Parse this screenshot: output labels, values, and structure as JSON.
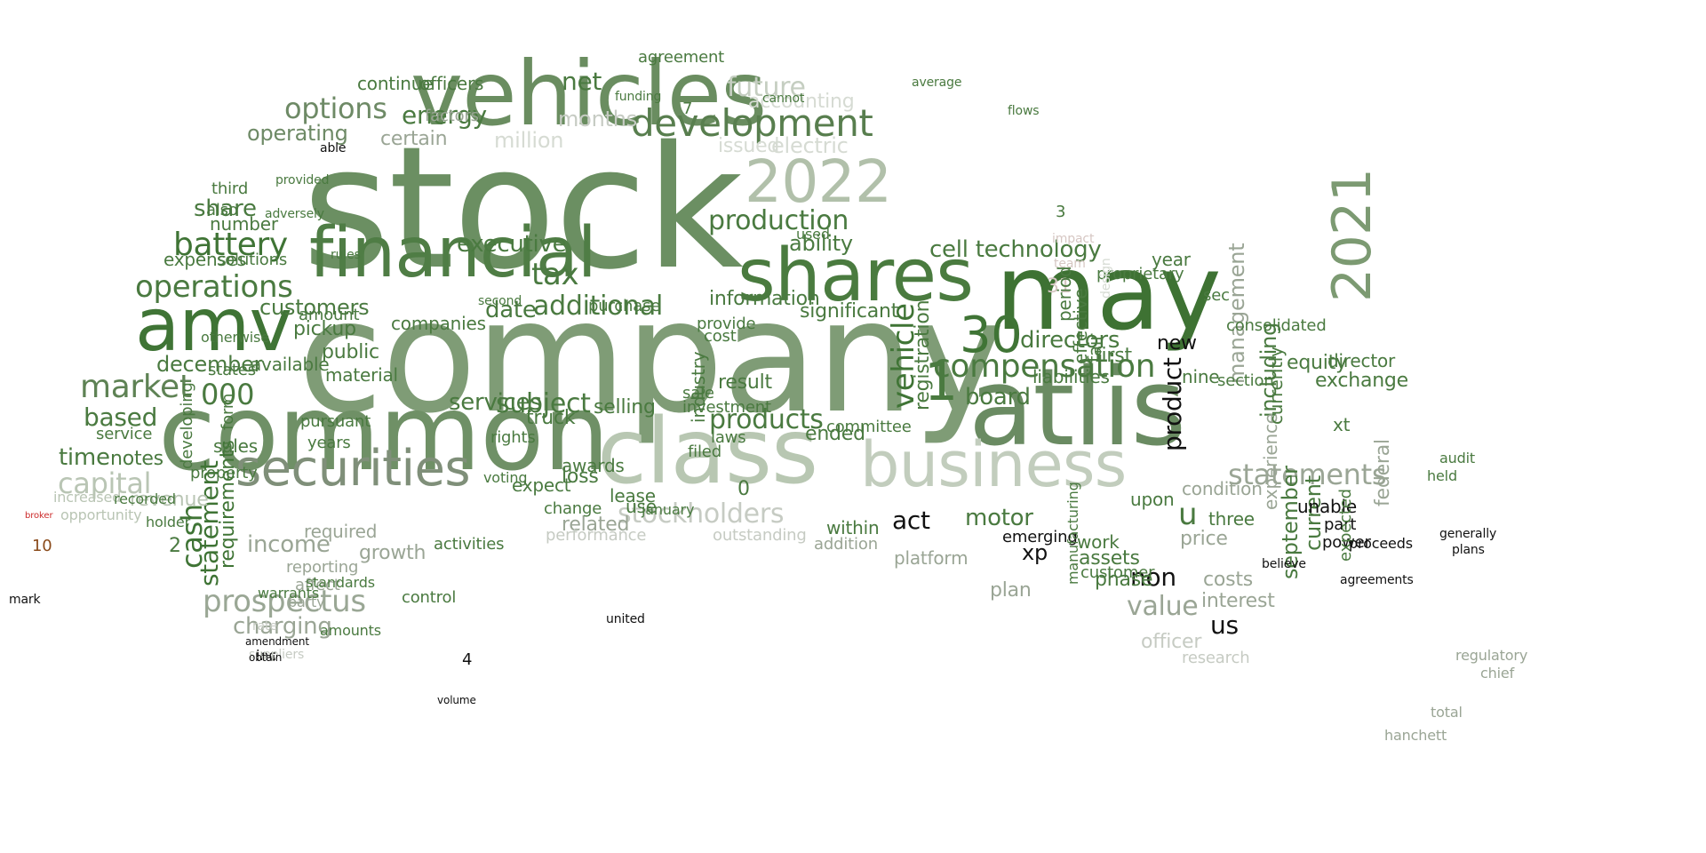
{
  "words": [
    {
      "text": "stock",
      "color": "#6b8f62",
      "s": 1
    },
    {
      "text": "company",
      "color": "#7f9c76",
      "s": 1
    },
    {
      "text": "common",
      "color": "#6f9066",
      "s": 1
    },
    {
      "text": "atlis",
      "color": "#6a8b62",
      "s": 1
    },
    {
      "text": "may",
      "color": "#3e7233",
      "s": 1
    },
    {
      "text": "vehicles",
      "color": "#6a8d60",
      "s": 1
    },
    {
      "text": "class",
      "color": "#b8c7b2",
      "s": 1
    },
    {
      "text": "business",
      "color": "#c2cdbd",
      "s": 1
    },
    {
      "text": "financial",
      "color": "#4f7d45",
      "s": 1
    },
    {
      "text": "shares",
      "color": "#4a7b3f",
      "s": 1
    },
    {
      "text": "amv",
      "color": "#3f7435",
      "s": 1
    },
    {
      "text": "securities",
      "color": "#7f8f79",
      "s": 1
    },
    {
      "text": "2022",
      "color": "#b1c0aa",
      "s": 1
    },
    {
      "text": "2021",
      "color": "#7c9a72",
      "s": 1
    },
    {
      "text": "30",
      "color": "#3f7435",
      "s": 1
    },
    {
      "text": "development",
      "color": "#587e4e",
      "s": 1
    },
    {
      "text": "battery",
      "color": "#3f7435",
      "s": 1
    },
    {
      "text": "market",
      "color": "#5e8254",
      "s": 1
    },
    {
      "text": "operations",
      "color": "#4a7a40",
      "s": 1
    },
    {
      "text": "compensation",
      "color": "#4a7a40",
      "s": 1
    },
    {
      "text": "vehicle",
      "color": "#3f7435",
      "s": 1
    },
    {
      "text": "production",
      "color": "#4a7a40",
      "s": 1
    },
    {
      "text": "energy",
      "color": "#4a7a40",
      "s": 1
    },
    {
      "text": "options",
      "color": "#6e8a66",
      "s": 1
    },
    {
      "text": "future",
      "color": "#c5ceC1",
      "s": 1
    },
    {
      "text": "net",
      "color": "#4a7a40",
      "s": 1
    },
    {
      "text": "prospectus",
      "color": "#9aa795",
      "s": 1
    },
    {
      "text": "stockholders",
      "color": "#c6cbc3",
      "s": 1
    },
    {
      "text": "statements",
      "color": "#9aa595",
      "s": 1
    },
    {
      "text": "value",
      "color": "#9aa595",
      "s": 1
    },
    {
      "text": "capital",
      "color": "#b9c5b4",
      "s": 1
    },
    {
      "text": "000",
      "color": "#4a7a40",
      "s": 1
    },
    {
      "text": "additional",
      "color": "#4a7a40",
      "s": 1
    },
    {
      "text": "products",
      "color": "#4a7a40",
      "s": 1
    },
    {
      "text": "cell technology",
      "color": "#4a7a40",
      "s": 1
    },
    {
      "text": "directors",
      "color": "#4a7a40",
      "s": 1
    },
    {
      "text": "board",
      "color": "#4a7a40",
      "s": 1
    },
    {
      "text": "services",
      "color": "#4a7a40",
      "s": 1
    },
    {
      "text": "executive",
      "color": "#4a7a40",
      "s": 1
    },
    {
      "text": "tax",
      "color": "#4a7a40",
      "s": 1
    },
    {
      "text": "subject",
      "color": "#4a7a40",
      "s": 1
    },
    {
      "text": "date",
      "color": "#4a7a40",
      "s": 1
    },
    {
      "text": "customers",
      "color": "#4a7a40",
      "s": 1
    },
    {
      "text": "cash",
      "color": "#3f7435",
      "s": 1
    },
    {
      "text": "statement",
      "color": "#3f7435",
      "s": 1
    },
    {
      "text": "requirements",
      "color": "#3f7435",
      "s": 1
    },
    {
      "text": "december",
      "color": "#4a7a40",
      "s": 1
    },
    {
      "text": "based",
      "color": "#4a7a40",
      "s": 1
    },
    {
      "text": "time",
      "color": "#4a7a40",
      "s": 1
    },
    {
      "text": "notes",
      "color": "#4a7a40",
      "s": 1
    },
    {
      "text": "income",
      "color": "#9aa595",
      "s": 1
    },
    {
      "text": "charging",
      "color": "#9aa595",
      "s": 1
    },
    {
      "text": "growth",
      "color": "#9aa595",
      "s": 1
    },
    {
      "text": "motor",
      "color": "#4a7a40",
      "s": 1
    },
    {
      "text": "act",
      "color": "#111111",
      "s": 1
    },
    {
      "text": "non",
      "color": "#111111",
      "s": 1
    },
    {
      "text": "us",
      "color": "#111111",
      "s": 1
    },
    {
      "text": "u",
      "color": "#4a7a40",
      "s": 1
    },
    {
      "text": "1",
      "color": "#4a7a40",
      "s": 1
    },
    {
      "text": "share",
      "color": "#4a7a40",
      "s": 1
    },
    {
      "text": "operating",
      "color": "#6e8a66",
      "s": 1
    },
    {
      "text": "certain",
      "color": "#9aa595",
      "s": 1
    },
    {
      "text": "months",
      "color": "#c6cbc3",
      "s": 1
    },
    {
      "text": "million",
      "color": "#d6dbd3",
      "s": 1
    },
    {
      "text": "officers",
      "color": "#4a7a40",
      "s": 1
    },
    {
      "text": "continue",
      "color": "#4a7a40",
      "s": 1
    },
    {
      "text": "agreement",
      "color": "#4a7a40",
      "s": 1
    },
    {
      "text": "electric",
      "color": "#d6dbd3",
      "s": 1
    },
    {
      "text": "accounting",
      "color": "#d6dbd3",
      "s": 1
    },
    {
      "text": "issued",
      "color": "#d6dbd3",
      "s": 1
    },
    {
      "text": "ability",
      "color": "#4a7a40",
      "s": 1
    },
    {
      "text": "information",
      "color": "#4a7a40",
      "s": 1
    },
    {
      "text": "significant",
      "color": "#4a7a40",
      "s": 1
    },
    {
      "text": "registration",
      "color": "#4a7a40",
      "s": 1
    },
    {
      "text": "management",
      "color": "#9aa595",
      "s": 1
    },
    {
      "text": "including",
      "color": "#4a7a40",
      "s": 1
    },
    {
      "text": "current",
      "color": "#4a7a40",
      "s": 1
    },
    {
      "text": "september",
      "color": "#4a7a40",
      "s": 1
    },
    {
      "text": "product",
      "color": "#111111",
      "s": 1
    },
    {
      "text": "liabilities",
      "color": "#4a7a40",
      "s": 1
    },
    {
      "text": "selling",
      "color": "#4a7a40",
      "s": 1
    },
    {
      "text": "material",
      "color": "#4a7a40",
      "s": 1
    },
    {
      "text": "public",
      "color": "#4a7a40",
      "s": 1
    },
    {
      "text": "pickup",
      "color": "#4a7a40",
      "s": 1
    },
    {
      "text": "amount",
      "color": "#4a7a40",
      "s": 1
    },
    {
      "text": "available",
      "color": "#4a7a40",
      "s": 1
    },
    {
      "text": "sales",
      "color": "#4a7a40",
      "s": 1
    },
    {
      "text": "service",
      "color": "#4a7a40",
      "s": 1
    },
    {
      "text": "expenses",
      "color": "#4a7a40",
      "s": 1
    },
    {
      "text": "solutions",
      "color": "#4a7a40",
      "s": 1
    },
    {
      "text": "number",
      "color": "#4a7a40",
      "s": 1
    },
    {
      "text": "third",
      "color": "#4a7a40",
      "s": 1
    },
    {
      "text": "also",
      "color": "#4a7a40",
      "s": 1
    },
    {
      "text": "result",
      "color": "#4a7a40",
      "s": 1
    },
    {
      "text": "truck",
      "color": "#4a7a40",
      "s": 1
    },
    {
      "text": "ended",
      "color": "#4a7a40",
      "s": 1
    },
    {
      "text": "equity",
      "color": "#4a7a40",
      "s": 1
    },
    {
      "text": "exchange",
      "color": "#4a7a40",
      "s": 1
    },
    {
      "text": "director",
      "color": "#4a7a40",
      "s": 1
    },
    {
      "text": "new",
      "color": "#111111",
      "s": 1
    },
    {
      "text": "first",
      "color": "#4a7a40",
      "s": 1
    },
    {
      "text": "year",
      "color": "#4a7a40",
      "s": 1
    },
    {
      "text": "proprietary",
      "color": "#4a7a40",
      "s": 1
    },
    {
      "text": "costs",
      "color": "#9aa595",
      "s": 1
    },
    {
      "text": "interest",
      "color": "#9aa595",
      "s": 1
    },
    {
      "text": "assets",
      "color": "#4a7a40",
      "s": 1
    },
    {
      "text": "phase",
      "color": "#4a7a40",
      "s": 1
    },
    {
      "text": "plan",
      "color": "#9aa595",
      "s": 1
    },
    {
      "text": "work",
      "color": "#4a7a40",
      "s": 1
    },
    {
      "text": "xp",
      "color": "#111111",
      "s": 1
    },
    {
      "text": "emerging",
      "color": "#111111",
      "s": 1
    },
    {
      "text": "three",
      "color": "#4a7a40",
      "s": 1
    },
    {
      "text": "price",
      "color": "#9aa595",
      "s": 1
    },
    {
      "text": "condition",
      "color": "#9aa595",
      "s": 1
    },
    {
      "text": "unable",
      "color": "#111111",
      "s": 1
    },
    {
      "text": "federal",
      "color": "#9aa595",
      "s": 1
    },
    {
      "text": "experience",
      "color": "#9aa595",
      "s": 1
    },
    {
      "text": "officer",
      "color": "#c6cbc3",
      "s": 1
    },
    {
      "text": "research",
      "color": "#c6cbc3",
      "s": 1
    },
    {
      "text": "related",
      "color": "#9aa595",
      "s": 1
    },
    {
      "text": "performance",
      "color": "#c6cbc3",
      "s": 1
    },
    {
      "text": "outstanding",
      "color": "#c6cbc3",
      "s": 1
    },
    {
      "text": "within",
      "color": "#4a7a40",
      "s": 1
    },
    {
      "text": "platform",
      "color": "#9aa595",
      "s": 1
    },
    {
      "text": "addition",
      "color": "#9aa595",
      "s": 1
    },
    {
      "text": "required",
      "color": "#9aa595",
      "s": 1
    },
    {
      "text": "reporting",
      "color": "#9aa595",
      "s": 1
    },
    {
      "text": "affect",
      "color": "#9aa595",
      "s": 1
    },
    {
      "text": "control",
      "color": "#4a7a40",
      "s": 1
    },
    {
      "text": "activities",
      "color": "#4a7a40",
      "s": 1
    },
    {
      "text": "loss",
      "color": "#4a7a40",
      "s": 1
    },
    {
      "text": "awards",
      "color": "#4a7a40",
      "s": 1
    },
    {
      "text": "expect",
      "color": "#4a7a40",
      "s": 1
    },
    {
      "text": "use",
      "color": "#4a7a40",
      "s": 1
    },
    {
      "text": "lease",
      "color": "#4a7a40",
      "s": 1
    },
    {
      "text": "change",
      "color": "#4a7a40",
      "s": 1
    },
    {
      "text": "companies",
      "color": "#4a7a40",
      "s": 1
    },
    {
      "text": "provide",
      "color": "#4a7a40",
      "s": 1
    },
    {
      "text": "investment",
      "color": "#4a7a40",
      "s": 1
    },
    {
      "text": "industry",
      "color": "#4a7a40",
      "s": 1
    },
    {
      "text": "committee",
      "color": "#4a7a40",
      "s": 1
    },
    {
      "text": "filed",
      "color": "#4a7a40",
      "s": 1
    },
    {
      "text": "sale",
      "color": "#4a7a40",
      "s": 1
    },
    {
      "text": "cost",
      "color": "#4a7a40",
      "s": 1
    },
    {
      "text": "years",
      "color": "#4a7a40",
      "s": 1
    },
    {
      "text": "pursuant",
      "color": "#4a7a40",
      "s": 1
    },
    {
      "text": "purchase",
      "color": "#4a7a40",
      "s": 1
    },
    {
      "text": "used",
      "color": "#4a7a40",
      "s": 1
    },
    {
      "text": "inc",
      "color": "#111111",
      "s": 1
    },
    {
      "text": "amounts",
      "color": "#4a7a40",
      "s": 1
    },
    {
      "text": "party",
      "color": "#9aa595",
      "s": 1
    },
    {
      "text": "standards",
      "color": "#4a7a40",
      "s": 1
    },
    {
      "text": "warrants",
      "color": "#4a7a40",
      "s": 1
    },
    {
      "text": "revenue",
      "color": "#b9c5b4",
      "s": 1
    },
    {
      "text": "opportunity",
      "color": "#b9c5b4",
      "s": 1
    },
    {
      "text": "increased",
      "color": "#b9c5b4",
      "s": 1
    },
    {
      "text": "mark",
      "color": "#111111",
      "s": 1
    },
    {
      "text": "10",
      "color": "#8a4a1a",
      "s": 1
    },
    {
      "text": "broker",
      "color": "#cc2b2b",
      "s": 1
    },
    {
      "text": "suppliers",
      "color": "#c6cbc3",
      "s": 1
    },
    {
      "text": "rate",
      "color": "#c6cbc3",
      "s": 1
    },
    {
      "text": "amendment",
      "color": "#111111",
      "s": 1
    },
    {
      "text": "obtain",
      "color": "#111111",
      "s": 1
    },
    {
      "text": "volume",
      "color": "#111111",
      "s": 1
    },
    {
      "text": "4",
      "color": "#111111",
      "s": 1
    },
    {
      "text": "3",
      "color": "#4a7a40",
      "s": 1
    },
    {
      "text": "2",
      "color": "#4a7a40",
      "s": 1
    },
    {
      "text": "31",
      "color": "#d6c7c3",
      "s": 1
    },
    {
      "text": "7",
      "color": "#4a7a40",
      "s": 1
    },
    {
      "text": "0",
      "color": "#4a7a40",
      "s": 1
    },
    {
      "text": "able",
      "color": "#111111",
      "s": 1
    },
    {
      "text": "provided",
      "color": "#4a7a40",
      "s": 1
    },
    {
      "text": "adversely",
      "color": "#4a7a40",
      "s": 1
    },
    {
      "text": "rules",
      "color": "#4a7a40",
      "s": 1
    },
    {
      "text": "cannot",
      "color": "#4a7a40",
      "s": 1
    },
    {
      "text": "factors",
      "color": "#9aa595",
      "s": 1
    },
    {
      "text": "funding",
      "color": "#4a7a40",
      "s": 1
    },
    {
      "text": "flows",
      "color": "#4a7a40",
      "s": 1
    },
    {
      "text": "average",
      "color": "#4a7a40",
      "s": 1
    },
    {
      "text": "fair",
      "color": "#4a7a40",
      "s": 1
    },
    {
      "text": "period",
      "color": "#4a7a40",
      "s": 1
    },
    {
      "text": "effective",
      "color": "#4a7a40",
      "s": 1
    },
    {
      "text": "upon",
      "color": "#4a7a40",
      "s": 1
    },
    {
      "text": "xt",
      "color": "#4a7a40",
      "s": 1
    },
    {
      "text": "nine",
      "color": "#4a7a40",
      "s": 1
    },
    {
      "text": "power",
      "color": "#111111",
      "s": 1
    },
    {
      "text": "part",
      "color": "#111111",
      "s": 1
    },
    {
      "text": "sec",
      "color": "#4a7a40",
      "s": 1
    },
    {
      "text": "section",
      "color": "#4a7a40",
      "s": 1
    },
    {
      "text": "consolidated",
      "color": "#4a7a40",
      "s": 1
    },
    {
      "text": "customer",
      "color": "#4a7a40",
      "s": 1
    },
    {
      "text": "manufacturing",
      "color": "#4a7a40",
      "s": 1
    },
    {
      "text": "laws",
      "color": "#4a7a40",
      "s": 1
    },
    {
      "text": "rights",
      "color": "#4a7a40",
      "s": 1
    },
    {
      "text": "voting",
      "color": "#4a7a40",
      "s": 1
    },
    {
      "text": "january",
      "color": "#4a7a40",
      "s": 1
    },
    {
      "text": "united",
      "color": "#111111",
      "s": 1
    },
    {
      "text": "form",
      "color": "#4a7a40",
      "s": 1
    },
    {
      "text": "developing",
      "color": "#4a7a40",
      "s": 1
    },
    {
      "text": "property",
      "color": "#4a7a40",
      "s": 1
    },
    {
      "text": "holder",
      "color": "#4a7a40",
      "s": 1
    },
    {
      "text": "recorded",
      "color": "#4a7a40",
      "s": 1
    },
    {
      "text": "states",
      "color": "#4a7a40",
      "s": 1
    },
    {
      "text": "otherwise",
      "color": "#4a7a40",
      "s": 1
    },
    {
      "text": "second",
      "color": "#4a7a40",
      "s": 1
    },
    {
      "text": "design",
      "color": "#d6dbd3",
      "s": 1
    },
    {
      "text": "impact",
      "color": "#d6c7c3",
      "s": 1
    },
    {
      "text": "team",
      "color": "#d6c7c3",
      "s": 1
    },
    {
      "text": "currently",
      "color": "#4a7a40",
      "s": 1
    },
    {
      "text": "expected",
      "color": "#4a7a40",
      "s": 1
    },
    {
      "text": "proceeds",
      "color": "#111111",
      "s": 1
    },
    {
      "text": "believe",
      "color": "#111111",
      "s": 1
    },
    {
      "text": "total",
      "color": "#9aa595",
      "s": 1
    },
    {
      "text": "hanchett",
      "color": "#9aa595",
      "s": 1
    },
    {
      "text": "regulatory",
      "color": "#9aa595",
      "s": 1
    },
    {
      "text": "chief",
      "color": "#9aa595",
      "s": 1
    },
    {
      "text": "held",
      "color": "#4a7a40",
      "s": 1
    },
    {
      "text": "audit",
      "color": "#4a7a40",
      "s": 1
    },
    {
      "text": "agreements",
      "color": "#111111",
      "s": 1
    },
    {
      "text": "generally",
      "color": "#111111",
      "s": 1
    },
    {
      "text": "plans",
      "color": "#111111",
      "s": 1
    }
  ]
}
